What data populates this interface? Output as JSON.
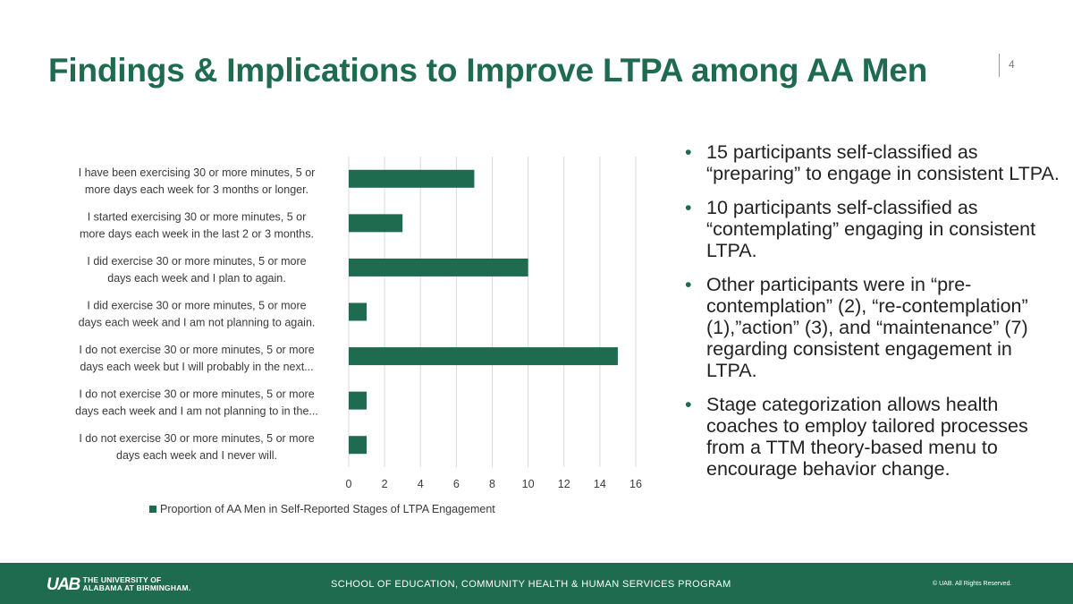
{
  "slide": {
    "title": "Findings & Implications to Improve LTPA among AA Men",
    "page_number": "4"
  },
  "bullets": [
    "15 participants self-classified as “preparing” to engage in consistent LTPA.",
    "10 participants self-classified as “contemplating” engaging in consistent LTPA.",
    "Other participants were in “pre-contemplation” (2), “re-contemplation” (1),”action” (3), and “maintenance” (7) regarding consistent engagement in LTPA.",
    "Stage categorization allows health coaches to employ tailored processes from a TTM theory-based menu to encourage behavior change."
  ],
  "footer": {
    "logo_mark": "UAB",
    "logo_line1": "THE UNIVERSITY OF",
    "logo_line2": "ALABAMA AT BIRMINGHAM.",
    "program": "SCHOOL OF EDUCATION, COMMUNITY HEALTH & HUMAN SERVICES PROGRAM",
    "copyright": "© UAB. All Rights Reserved."
  },
  "colors": {
    "accent": "#1e6b4f",
    "bar": "#1e6b4f",
    "grid": "#d9d9d9"
  },
  "chart_data": {
    "type": "bar",
    "orientation": "horizontal",
    "categories": [
      [
        "I have been exercising 30 or more minutes, 5 or",
        "more days each week for 3 months or longer."
      ],
      [
        "I started exercising 30 or more minutes, 5 or",
        "more days each week in the last 2 or 3 months."
      ],
      [
        "I did exercise 30 or more minutes, 5 or more",
        "days each week and I plan to again."
      ],
      [
        "I did exercise 30 or more minutes, 5 or more",
        "days each week and I am not planning to again."
      ],
      [
        "I do not exercise 30 or more minutes, 5 or more",
        "days each week but I will probably in the next..."
      ],
      [
        "I do not exercise 30 or more minutes, 5 or more",
        "days each week and I am not planning to in the..."
      ],
      [
        "I do not exercise 30 or more minutes, 5 or more",
        "days each week and I never will."
      ]
    ],
    "series": [
      {
        "name": "Proportion of AA Men in Self-Reported Stages of LTPA Engagement",
        "values": [
          7,
          3,
          10,
          1,
          15,
          1,
          1
        ]
      }
    ],
    "xlim": [
      0,
      16
    ],
    "xticks": [
      0,
      2,
      4,
      6,
      8,
      10,
      12,
      14,
      16
    ],
    "grid": true,
    "legend": "bottom"
  }
}
